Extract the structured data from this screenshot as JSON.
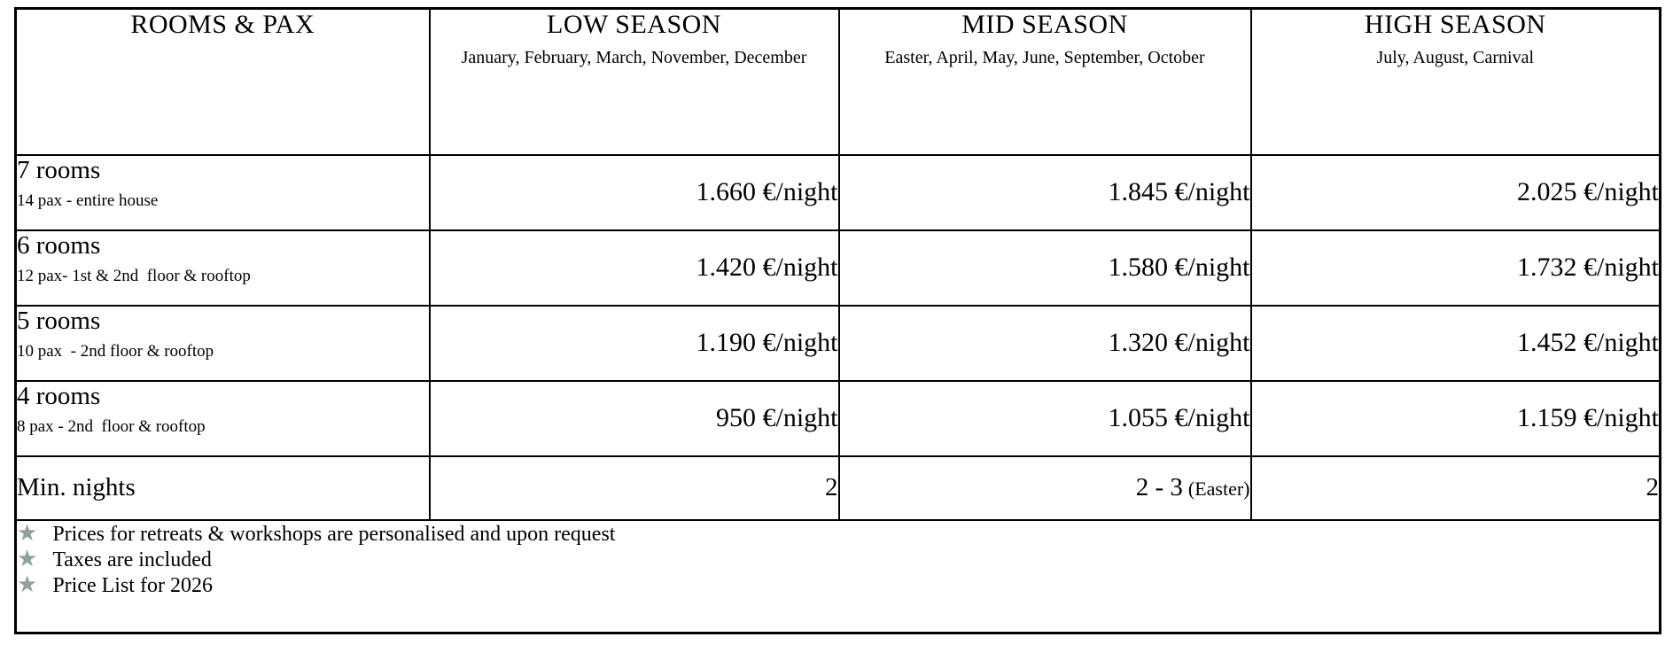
{
  "table": {
    "header": {
      "rooms_pax": {
        "title": "ROOMS & PAX"
      },
      "low": {
        "title": "LOW SEASON",
        "subtitle": "January, February, March, November, December"
      },
      "mid": {
        "title": "MID SEASON",
        "subtitle": "Easter, April, May, June, September, October"
      },
      "high": {
        "title": "HIGH SEASON",
        "subtitle": "July, August, Carnival"
      }
    },
    "rows": [
      {
        "name": "7 rooms",
        "pax": "14 pax - entire house",
        "low": "1.660 €/night",
        "mid": "1.845 €/night",
        "high": "2.025 €/night"
      },
      {
        "name": "6 rooms",
        "pax": "12 pax- 1st & 2nd  floor & rooftop",
        "low": "1.420 €/night",
        "mid": "1.580 €/night",
        "high": "1.732 €/night"
      },
      {
        "name": "5 rooms",
        "pax": "10 pax  - 2nd floor & rooftop",
        "low": "1.190 €/night",
        "mid": "1.320 €/night",
        "high": "1.452 €/night"
      },
      {
        "name": "4 rooms",
        "pax": "8 pax - 2nd  floor & rooftop",
        "low": "950 €/night",
        "mid": "1.055 €/night",
        "high": "1.159 €/night"
      }
    ],
    "min_nights": {
      "label": "Min. nights",
      "low": "2",
      "mid_main": "2 - 3",
      "mid_note": "(Easter)",
      "high": "2"
    }
  },
  "notes": {
    "star_icon": "★",
    "star_color": "#8da396",
    "items": [
      "Prices for retreats & workshops are personalised and upon request",
      "Taxes are included",
      "Price List for 2026"
    ]
  }
}
